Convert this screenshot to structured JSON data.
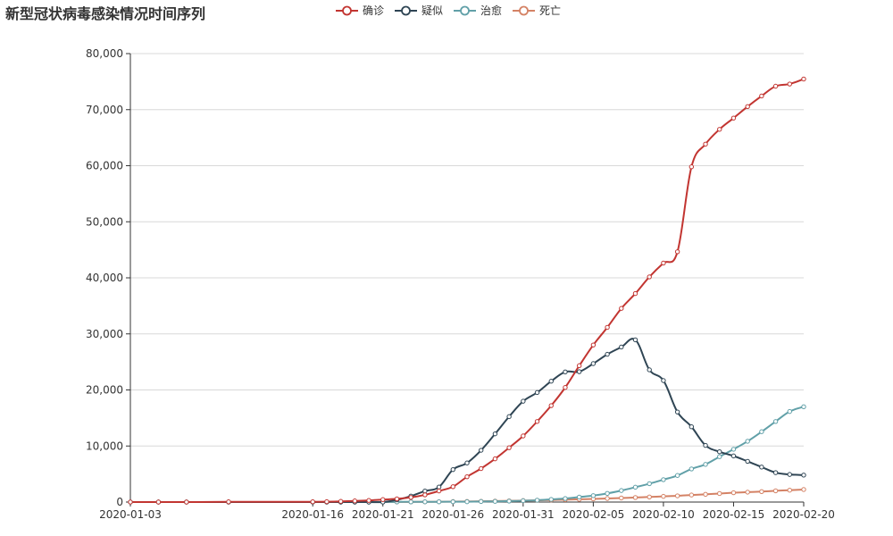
{
  "title": "新型冠状病毒感染情况时间序列",
  "chart_data": {
    "type": "line",
    "title": "新型冠状病毒感染情况时间序列",
    "xlabel": "",
    "ylabel": "",
    "x": [
      "2020-01-03",
      "2020-01-05",
      "2020-01-07",
      "2020-01-10",
      "2020-01-16",
      "2020-01-17",
      "2020-01-18",
      "2020-01-19",
      "2020-01-20",
      "2020-01-21",
      "2020-01-22",
      "2020-01-23",
      "2020-01-24",
      "2020-01-25",
      "2020-01-26",
      "2020-01-27",
      "2020-01-28",
      "2020-01-29",
      "2020-01-30",
      "2020-01-31",
      "2020-02-01",
      "2020-02-02",
      "2020-02-03",
      "2020-02-04",
      "2020-02-05",
      "2020-02-06",
      "2020-02-07",
      "2020-02-08",
      "2020-02-09",
      "2020-02-10",
      "2020-02-11",
      "2020-02-12",
      "2020-02-13",
      "2020-02-14",
      "2020-02-15",
      "2020-02-16",
      "2020-02-17",
      "2020-02-18",
      "2020-02-19",
      "2020-02-20"
    ],
    "x_ticks": [
      "2020-01-03",
      "2020-01-16",
      "2020-01-21",
      "2020-01-26",
      "2020-01-31",
      "2020-02-05",
      "2020-02-10",
      "2020-02-15",
      "2020-02-20"
    ],
    "y_ticks": [
      "0",
      "10,000",
      "20,000",
      "30,000",
      "40,000",
      "50,000",
      "60,000",
      "70,000",
      "80,000"
    ],
    "ylim": [
      0,
      80000
    ],
    "grid": "horizontal",
    "legend_position": "top-center",
    "series": [
      {
        "name": "确诊",
        "color": "#c23531",
        "values": [
          0,
          0,
          0,
          41,
          45,
          62,
          121,
          198,
          291,
          440,
          571,
          830,
          1287,
          1975,
          2744,
          4515,
          5974,
          7711,
          9692,
          11791,
          14380,
          17205,
          20438,
          24324,
          28018,
          31161,
          34546,
          37198,
          40171,
          42638,
          44653,
          59804,
          63851,
          66492,
          68500,
          70548,
          72436,
          74185,
          74576,
          75465
        ]
      },
      {
        "name": "疑似",
        "color": "#2f4554",
        "values": [
          0,
          0,
          0,
          0,
          0,
          0,
          0,
          0,
          0,
          0,
          393,
          1072,
          1965,
          2684,
          5794,
          6973,
          9239,
          12167,
          15238,
          17988,
          19544,
          21558,
          23214,
          23260,
          24702,
          26359,
          27657,
          28942,
          23589,
          21675,
          16067,
          13435,
          10109,
          8969,
          8228,
          7264,
          6242,
          5248,
          4922,
          4808
        ]
      },
      {
        "name": "治愈",
        "color": "#61a0a8",
        "values": [
          0,
          0,
          0,
          0,
          0,
          0,
          0,
          0,
          0,
          0,
          28,
          34,
          38,
          49,
          51,
          60,
          103,
          124,
          171,
          243,
          328,
          475,
          632,
          892,
          1153,
          1540,
          2050,
          2649,
          3281,
          3996,
          4740,
          5911,
          6723,
          8096,
          9419,
          10844,
          12552,
          14376,
          16155,
          17000
        ]
      },
      {
        "name": "死亡",
        "color": "#d48265",
        "values": [
          0,
          0,
          0,
          1,
          2,
          2,
          3,
          4,
          6,
          9,
          17,
          25,
          41,
          56,
          80,
          106,
          132,
          170,
          213,
          259,
          304,
          361,
          425,
          490,
          563,
          636,
          722,
          811,
          908,
          1016,
          1113,
          1259,
          1380,
          1523,
          1665,
          1770,
          1868,
          2004,
          2118,
          2236
        ]
      }
    ]
  }
}
